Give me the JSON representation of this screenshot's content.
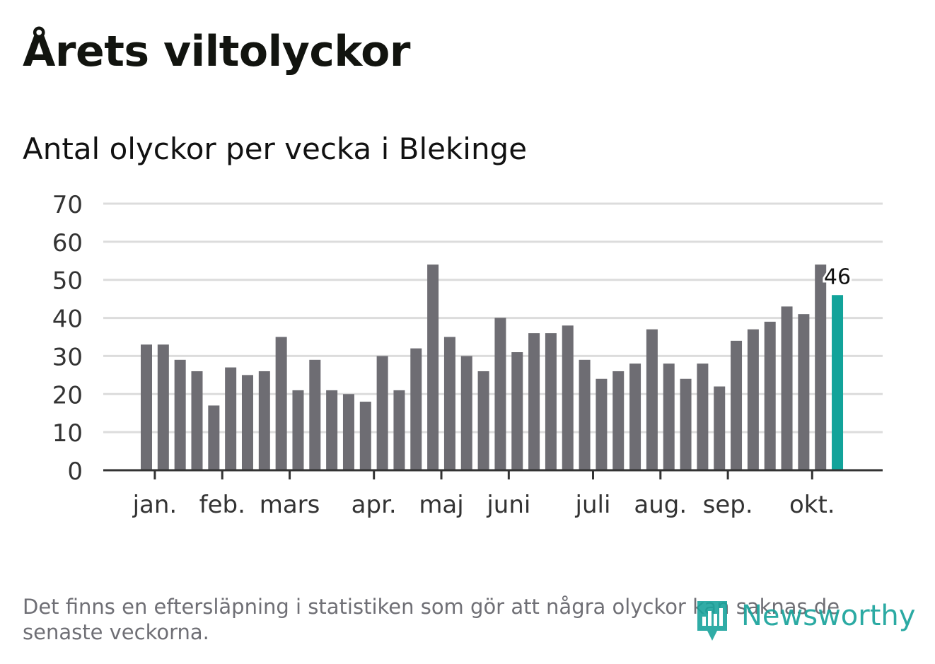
{
  "title": "Årets viltolyckor",
  "subtitle": "Antal olyckor per vecka i Blekinge",
  "note": "Det finns en eftersläpning i statistiken som gör att några olyckor kan saknas de senaste veckorna.",
  "logo": {
    "text": "Newsworthy",
    "icon": "bar-chart-pin-icon"
  },
  "colors": {
    "bar": "#6e6d73",
    "highlight": "#12a39a",
    "grid": "#dcdcdc",
    "axis": "#333333",
    "text": "#333333"
  },
  "chart_data": {
    "type": "bar",
    "title": "Antal olyckor per vecka i Blekinge",
    "xlabel": "",
    "ylabel": "",
    "ylim": [
      0,
      70
    ],
    "yticks": [
      0,
      10,
      20,
      30,
      40,
      50,
      60,
      70
    ],
    "grid": true,
    "values": [
      33,
      33,
      29,
      26,
      17,
      27,
      25,
      26,
      35,
      21,
      29,
      21,
      20,
      18,
      30,
      21,
      32,
      54,
      35,
      30,
      26,
      40,
      31,
      36,
      36,
      38,
      29,
      24,
      26,
      28,
      37,
      28,
      24,
      28,
      22,
      34,
      37,
      39,
      43,
      41,
      54,
      46
    ],
    "highlight_index": 41,
    "highlight_label": "46",
    "month_ticks": [
      {
        "label": "jan.",
        "bar_index": 0.5
      },
      {
        "label": "feb.",
        "bar_index": 4.5
      },
      {
        "label": "mars",
        "bar_index": 8.5
      },
      {
        "label": "apr.",
        "bar_index": 13.5
      },
      {
        "label": "maj",
        "bar_index": 17.5
      },
      {
        "label": "juni",
        "bar_index": 21.5
      },
      {
        "label": "juli",
        "bar_index": 26.5
      },
      {
        "label": "aug.",
        "bar_index": 30.5
      },
      {
        "label": "sep.",
        "bar_index": 34.5
      },
      {
        "label": "okt.",
        "bar_index": 39.5
      }
    ]
  }
}
